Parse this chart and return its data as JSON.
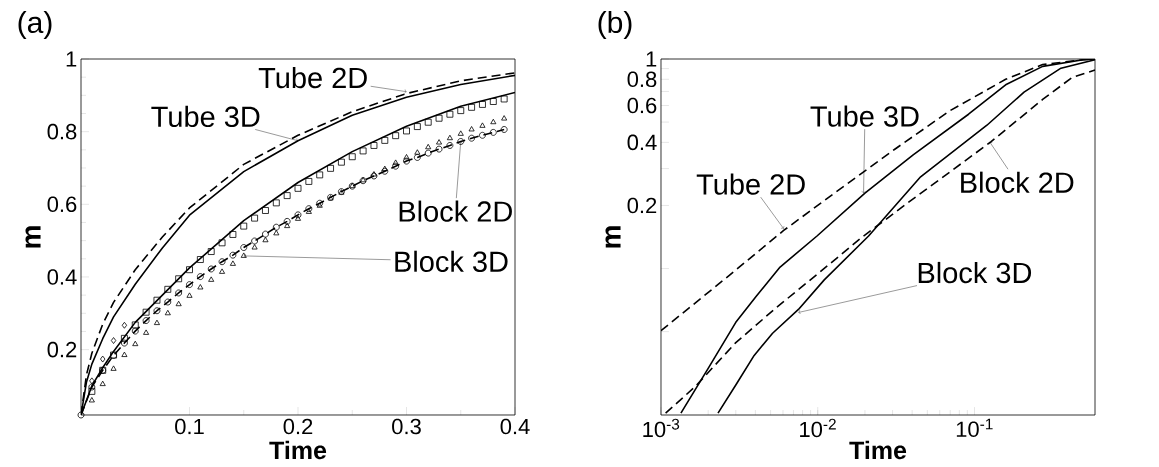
{
  "chart_data": [
    {
      "type": "line",
      "title": "(a)",
      "xlabel": "Time",
      "ylabel": "m",
      "xlim": [
        0,
        0.4
      ],
      "ylim": [
        0.02,
        1
      ],
      "xticks": [
        0.1,
        0.2,
        0.3,
        0.4
      ],
      "yticks": [
        0.2,
        0.4,
        0.6,
        0.8,
        1
      ],
      "series": [
        {
          "color": "#000000",
          "line_style": "dashed",
          "marker": "none",
          "x": [
            0,
            0.005,
            0.01,
            0.02,
            0.03,
            0.05,
            0.075,
            0.1,
            0.15,
            0.2,
            0.25,
            0.3,
            0.35,
            0.4
          ],
          "values": [
            0.02,
            0.13,
            0.19,
            0.27,
            0.33,
            0.42,
            0.51,
            0.59,
            0.71,
            0.79,
            0.855,
            0.905,
            0.94,
            0.962
          ]
        },
        {
          "color": "#000000",
          "line_style": "solid",
          "marker": "none",
          "x": [
            0,
            0.005,
            0.01,
            0.02,
            0.03,
            0.05,
            0.075,
            0.1,
            0.15,
            0.2,
            0.25,
            0.3,
            0.35,
            0.4
          ],
          "values": [
            0.02,
            0.11,
            0.16,
            0.23,
            0.29,
            0.38,
            0.48,
            0.57,
            0.69,
            0.775,
            0.845,
            0.895,
            0.93,
            0.955
          ]
        },
        {
          "color": "#000000",
          "line_style": "solid",
          "marker": "none",
          "x": [
            0,
            0.01,
            0.02,
            0.03,
            0.05,
            0.075,
            0.1,
            0.15,
            0.2,
            0.25,
            0.3,
            0.35,
            0.4
          ],
          "values": [
            0.02,
            0.1,
            0.15,
            0.195,
            0.275,
            0.35,
            0.425,
            0.555,
            0.66,
            0.745,
            0.815,
            0.87,
            0.908
          ]
        },
        {
          "type": "scatter",
          "color": "#000000",
          "marker": "square",
          "x": [
            0.01,
            0.02,
            0.03,
            0.04,
            0.05,
            0.06,
            0.07,
            0.08,
            0.09,
            0.1,
            0.11,
            0.12,
            0.13,
            0.14,
            0.15,
            0.16,
            0.17,
            0.18,
            0.19,
            0.2,
            0.21,
            0.22,
            0.23,
            0.24,
            0.25,
            0.26,
            0.27,
            0.28,
            0.29,
            0.3,
            0.31,
            0.32,
            0.33,
            0.34,
            0.35,
            0.36,
            0.37,
            0.38,
            0.39
          ],
          "values": [
            0.085,
            0.143,
            0.185,
            0.231,
            0.268,
            0.303,
            0.336,
            0.366,
            0.395,
            0.42,
            0.448,
            0.47,
            0.494,
            0.517,
            0.54,
            0.562,
            0.583,
            0.604,
            0.624,
            0.644,
            0.663,
            0.681,
            0.699,
            0.716,
            0.731,
            0.747,
            0.762,
            0.776,
            0.789,
            0.802,
            0.814,
            0.826,
            0.837,
            0.848,
            0.858,
            0.867,
            0.875,
            0.883,
            0.89
          ]
        },
        {
          "type": "scatter",
          "color": "#000000",
          "marker": "triangle",
          "x": [
            0.01,
            0.02,
            0.03,
            0.04,
            0.05,
            0.06,
            0.07,
            0.08,
            0.09,
            0.1,
            0.11,
            0.12,
            0.13,
            0.14,
            0.15,
            0.16,
            0.17,
            0.18,
            0.19,
            0.2,
            0.21,
            0.22,
            0.23,
            0.24,
            0.25,
            0.26,
            0.27,
            0.28,
            0.29,
            0.3,
            0.31,
            0.32,
            0.33,
            0.34,
            0.35,
            0.36,
            0.37,
            0.38,
            0.39
          ],
          "values": [
            0.06,
            0.105,
            0.147,
            0.185,
            0.215,
            0.246,
            0.273,
            0.3,
            0.325,
            0.348,
            0.371,
            0.392,
            0.414,
            0.436,
            0.458,
            0.481,
            0.501,
            0.52,
            0.54,
            0.56,
            0.579,
            0.596,
            0.616,
            0.632,
            0.65,
            0.666,
            0.682,
            0.697,
            0.714,
            0.729,
            0.742,
            0.757,
            0.77,
            0.782,
            0.794,
            0.806,
            0.816,
            0.826,
            0.836
          ]
        },
        {
          "color": "#000000",
          "line_style": "dashed",
          "marker": "circle",
          "x": [
            0,
            0.01,
            0.02,
            0.03,
            0.04,
            0.05,
            0.06,
            0.07,
            0.08,
            0.09,
            0.1,
            0.11,
            0.12,
            0.13,
            0.14,
            0.15,
            0.16,
            0.17,
            0.18,
            0.19,
            0.2,
            0.21,
            0.22,
            0.23,
            0.24,
            0.25,
            0.26,
            0.27,
            0.28,
            0.29,
            0.3,
            0.31,
            0.32,
            0.33,
            0.34,
            0.35,
            0.36,
            0.37,
            0.38,
            0.39
          ],
          "values": [
            0.02,
            0.097,
            0.143,
            0.184,
            0.218,
            0.251,
            0.28,
            0.307,
            0.331,
            0.356,
            0.379,
            0.401,
            0.422,
            0.442,
            0.46,
            0.481,
            0.499,
            0.518,
            0.537,
            0.553,
            0.571,
            0.588,
            0.603,
            0.619,
            0.635,
            0.65,
            0.665,
            0.678,
            0.691,
            0.705,
            0.719,
            0.729,
            0.741,
            0.752,
            0.762,
            0.773,
            0.782,
            0.79,
            0.798,
            0.806
          ]
        },
        {
          "type": "scatter",
          "color": "#000000",
          "marker": "diamond",
          "x": [
            0.01,
            0.02,
            0.03,
            0.04
          ],
          "values": [
            0.114,
            0.174,
            0.225,
            0.267
          ]
        }
      ],
      "annotations": [
        {
          "text": "Tube 2D",
          "x": 0.3,
          "y": 0.91
        },
        {
          "text": "Tube 3D",
          "x": 0.2,
          "y": 0.775
        },
        {
          "text": "Block 2D",
          "x": 0.35,
          "y": 0.773
        },
        {
          "text": "Block 3D",
          "x": 0.15,
          "y": 0.458
        }
      ]
    },
    {
      "type": "line",
      "title": "(b)",
      "xlabel": "Time",
      "ylabel": "m",
      "log": "xy",
      "xlim": [
        0.001,
        0.587
      ],
      "ylim": [
        0.02,
        1
      ],
      "xticks": [
        {
          "value": 0.001,
          "label": "10$^{-3}$"
        },
        {
          "value": 0.01,
          "label": "10$^{-2}$"
        },
        {
          "value": 0.1,
          "label": "10$^{-1}$"
        }
      ],
      "yticks": [
        {
          "value": 0.05,
          "label": null
        },
        {
          "value": 0.1,
          "label": null
        },
        0.2,
        {
          "value": 0.3,
          "label": null
        },
        0.4,
        {
          "value": 0.5,
          "label": null
        },
        0.6,
        {
          "value": 0.7,
          "label": null
        },
        0.8,
        {
          "value": 0.9,
          "label": null
        },
        1
      ],
      "series": [
        {
          "color": "#000000",
          "line_style": "dashed",
          "marker": "none",
          "x": [
            0.001,
            0.00268,
            0.00606,
            0.0137,
            0.031,
            0.0698,
            0.158,
            0.272,
            0.493,
            0.587
          ],
          "values": [
            0.0505,
            0.0918,
            0.152,
            0.238,
            0.371,
            0.567,
            0.8,
            0.941,
            0.992,
            1.0
          ]
        },
        {
          "color": "#000000",
          "line_style": "solid",
          "marker": "none",
          "x": [
            0.00134,
            0.002,
            0.003,
            0.00404,
            0.00575,
            0.00989,
            0.02,
            0.0406,
            0.0916,
            0.158,
            0.272,
            0.493,
            0.587
          ],
          "values": [
            0.0204,
            0.0334,
            0.0554,
            0.0735,
            0.1016,
            0.143,
            0.229,
            0.349,
            0.545,
            0.753,
            0.922,
            0.992,
            1.0
          ]
        },
        {
          "color": "#000000",
          "line_style": "dashed",
          "marker": "none",
          "x": [
            0.00107,
            0.00165,
            0.003,
            0.00544,
            0.00989,
            0.019,
            0.0406,
            0.127,
            0.272,
            0.42,
            0.587
          ],
          "values": [
            0.0204,
            0.0273,
            0.0443,
            0.0651,
            0.0937,
            0.1405,
            0.215,
            0.402,
            0.641,
            0.817,
            0.886
          ]
        },
        {
          "color": "#000000",
          "line_style": "solid",
          "marker": "none",
          "x": [
            0.00231,
            0.003,
            0.00393,
            0.00515,
            0.00753,
            0.011,
            0.0211,
            0.0453,
            0.12,
            0.207,
            0.356,
            0.587
          ],
          "values": [
            0.0204,
            0.0278,
            0.0385,
            0.0491,
            0.0638,
            0.0883,
            0.143,
            0.274,
            0.483,
            0.695,
            0.904,
            0.992
          ]
        }
      ],
      "annotations": [
        {
          "text": "Tube 3D",
          "x": 0.0196,
          "y": 0.229
        },
        {
          "text": "Tube 2D",
          "x": 0.00606,
          "y": 0.155
        },
        {
          "text": "Block 2D",
          "x": 0.125,
          "y": 0.402
        },
        {
          "text": "Block 3D",
          "x": 0.00753,
          "y": 0.0617
        }
      ]
    }
  ]
}
